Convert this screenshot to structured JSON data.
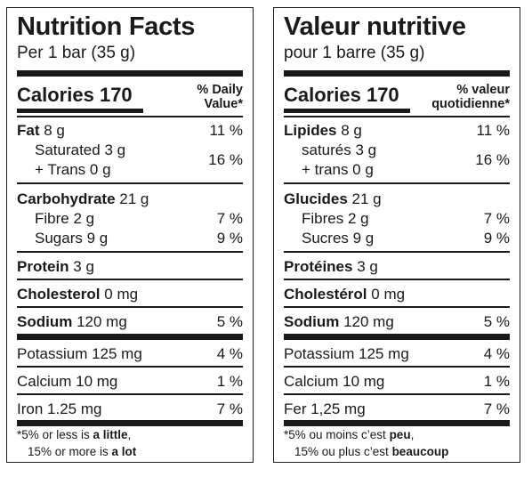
{
  "en": {
    "title": "Nutrition Facts",
    "serving": "Per 1 bar (35 g)",
    "calories_label": "Calories",
    "calories_value": "170",
    "dv_line1": "% Daily",
    "dv_line2": "Value*",
    "fat_label": "Fat",
    "fat_amount": "8 g",
    "fat_dv": "11 %",
    "sat_label": "Saturated 3 g",
    "trans_label": "+ Trans 0 g",
    "sat_trans_dv": "16 %",
    "carb_label": "Carbohydrate",
    "carb_amount": "21 g",
    "fibre_label": "Fibre 2 g",
    "fibre_dv": "7 %",
    "sugars_label": "Sugars 9 g",
    "sugars_dv": "9 %",
    "protein_label": "Protein",
    "protein_amount": "3 g",
    "chol_label": "Cholesterol",
    "chol_amount": "0 mg",
    "sodium_label": "Sodium",
    "sodium_amount": "120 mg",
    "sodium_dv": "5 %",
    "potassium_label": "Potassium 125 mg",
    "potassium_dv": "4 %",
    "calcium_label": "Calcium 10 mg",
    "calcium_dv": "1 %",
    "iron_label": "Iron 1.25 mg",
    "iron_dv": "7 %",
    "foot1_pre": "*5% or less is ",
    "foot1_bold": "a little",
    "foot1_post": ",",
    "foot2_pre": "15% or more is ",
    "foot2_bold": "a lot"
  },
  "fr": {
    "title": "Valeur nutritive",
    "serving": "pour 1 barre (35 g)",
    "calories_label": "Calories",
    "calories_value": "170",
    "dv_line1": "% valeur",
    "dv_line2": "quotidienne*",
    "fat_label": "Lipides",
    "fat_amount": "8 g",
    "fat_dv": "11 %",
    "sat_label": "saturés 3 g",
    "trans_label": "+ trans 0 g",
    "sat_trans_dv": "16 %",
    "carb_label": "Glucides",
    "carb_amount": "21 g",
    "fibre_label": "Fibres 2 g",
    "fibre_dv": "7 %",
    "sugars_label": "Sucres 9 g",
    "sugars_dv": "9 %",
    "protein_label": "Protéines",
    "protein_amount": "3 g",
    "chol_label": "Cholestérol",
    "chol_amount": "0 mg",
    "sodium_label": "Sodium",
    "sodium_amount": "120 mg",
    "sodium_dv": "5 %",
    "potassium_label": "Potassium 125 mg",
    "potassium_dv": "4 %",
    "calcium_label": "Calcium 10 mg",
    "calcium_dv": "1 %",
    "iron_label": "Fer 1,25 mg",
    "iron_dv": "7 %",
    "foot1_pre": "*5% ou moins c’est ",
    "foot1_bold": "peu",
    "foot1_post": ",",
    "foot2_pre": "15% ou plus c’est ",
    "foot2_bold": "beaucoup"
  }
}
